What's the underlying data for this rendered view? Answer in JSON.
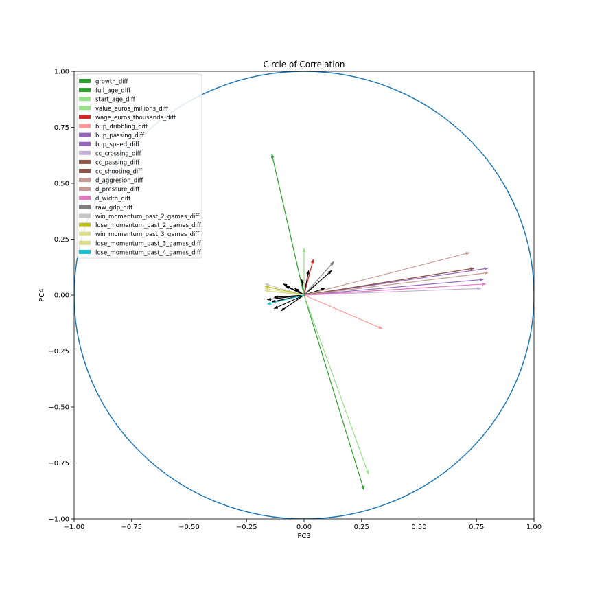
{
  "chart_data": {
    "type": "scatter",
    "title": "Circle of Correlation",
    "xlabel": "PC3",
    "ylabel": "PC4",
    "xlim": [
      -1.0,
      1.0
    ],
    "ylim": [
      -1.0,
      1.0
    ],
    "xticks": [
      "−1.00",
      "−0.75",
      "−0.50",
      "−0.25",
      "0.00",
      "0.25",
      "0.50",
      "0.75",
      "1.00"
    ],
    "yticks": [
      "−1.00",
      "−0.75",
      "−0.50",
      "−0.25",
      "0.00",
      "0.25",
      "0.50",
      "0.75",
      "1.00"
    ],
    "grid": false,
    "legend_position": "upper-left",
    "circle": {
      "radius": 1.0,
      "color": "#1f77b4"
    },
    "series": [
      {
        "name": "growth_diff",
        "color": "#2ca02c",
        "vector": [
          -0.14,
          0.63
        ]
      },
      {
        "name": "full_age_diff",
        "color": "#2ca02c",
        "vector": [
          0.26,
          -0.87
        ]
      },
      {
        "name": "start_age_diff",
        "color": "#98df8a",
        "vector": [
          0.28,
          -0.8
        ]
      },
      {
        "name": "value_euros_millions_diff",
        "color": "#98df8a",
        "vector": [
          0.0,
          0.21
        ]
      },
      {
        "name": "wage_euros_thousands_diff",
        "color": "#d62728",
        "vector": [
          0.04,
          0.16
        ]
      },
      {
        "name": "bup_dribbling_diff",
        "color": "#ff9896",
        "vector": [
          0.34,
          -0.15
        ]
      },
      {
        "name": "bup_passing_diff",
        "color": "#9467bd",
        "vector": [
          0.8,
          0.12
        ]
      },
      {
        "name": "bup_speed_diff",
        "color": "#9467bd",
        "vector": [
          0.78,
          0.07
        ]
      },
      {
        "name": "cc_crossing_diff",
        "color": "#c5b0d5",
        "vector": [
          0.77,
          0.03
        ]
      },
      {
        "name": "cc_passing_diff",
        "color": "#8c564b",
        "vector": [
          0.74,
          0.12
        ]
      },
      {
        "name": "cc_shooting_diff",
        "color": "#8c564b",
        "vector": [
          0.74,
          0.12
        ]
      },
      {
        "name": "d_aggresion_diff",
        "color": "#c49c94",
        "vector": [
          0.72,
          0.19
        ]
      },
      {
        "name": "d_pressure_diff",
        "color": "#c49c94",
        "vector": [
          0.8,
          0.1
        ]
      },
      {
        "name": "d_width_diff",
        "color": "#e377c2",
        "vector": [
          0.79,
          0.05
        ]
      },
      {
        "name": "raw_gdp_diff",
        "color": "#7f7f7f",
        "vector": [
          0.13,
          0.15
        ]
      },
      {
        "name": "win_momentum_past_2_games_diff",
        "color": "#c7c7c7",
        "vector": [
          -0.17,
          0.05
        ]
      },
      {
        "name": "lose_momentum_past_2_games_diff",
        "color": "#bcbd22",
        "vector": [
          -0.17,
          0.04
        ]
      },
      {
        "name": "win_momentum_past_3_games_diff",
        "color": "#dbdb8d",
        "vector": [
          -0.17,
          0.02
        ]
      },
      {
        "name": "lose_momentum_past_3_games_diff",
        "color": "#dbdb8d",
        "vector": [
          -0.17,
          0.03
        ]
      },
      {
        "name": "lose_momentum_past_4_games_diff",
        "color": "#17becf",
        "vector": [
          -0.16,
          -0.04
        ]
      }
    ],
    "unlabeled_vectors": {
      "color": "#000000",
      "vectors": [
        [
          -0.16,
          -0.02
        ],
        [
          -0.14,
          -0.03
        ],
        [
          -0.13,
          -0.06
        ],
        [
          -0.1,
          -0.07
        ],
        [
          -0.09,
          0.05
        ],
        [
          -0.04,
          0.03
        ],
        [
          -0.08,
          0.04
        ],
        [
          -0.04,
          0.03
        ],
        [
          0.02,
          0.11
        ],
        [
          -0.01,
          0.07
        ],
        [
          0.12,
          0.11
        ],
        [
          0.09,
          0.03
        ],
        [
          -0.13,
          -0.01
        ]
      ]
    }
  }
}
